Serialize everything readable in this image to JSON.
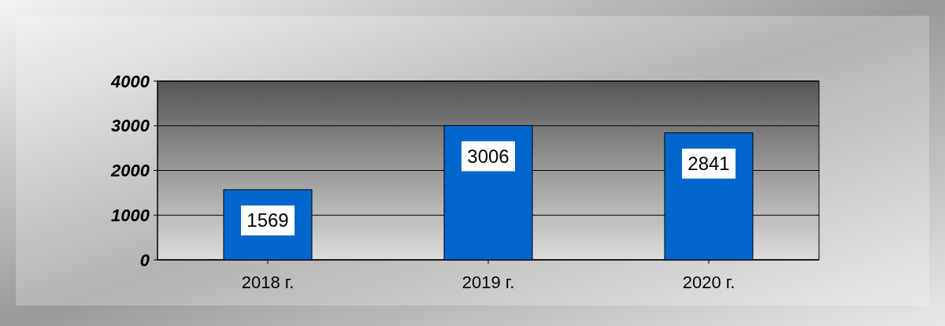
{
  "chart_data": {
    "type": "bar",
    "categories": [
      "2018 г.",
      "2019 г.",
      "2020 г."
    ],
    "values": [
      1569,
      3006,
      2841
    ],
    "color": "#0066cc",
    "ylim": [
      0,
      4000
    ],
    "yticks": [
      0,
      1000,
      2000,
      3000,
      4000
    ],
    "grid": "y",
    "data_labels": true
  }
}
